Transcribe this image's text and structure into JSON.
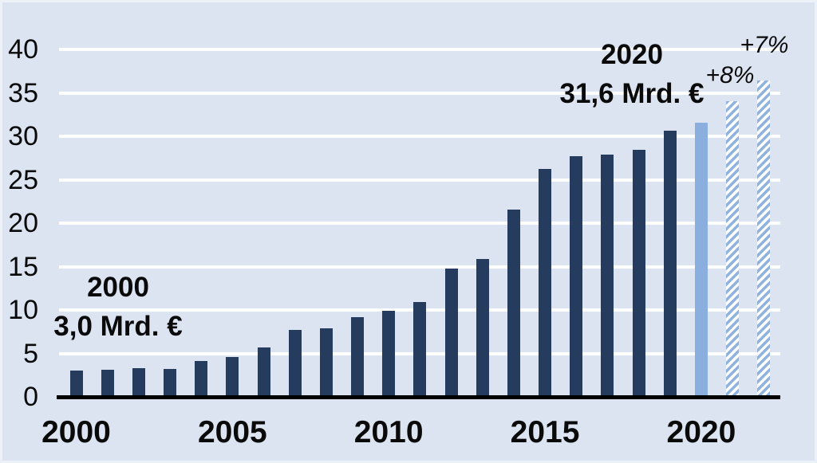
{
  "chart_data": {
    "type": "bar",
    "categories": [
      2000,
      2001,
      2002,
      2003,
      2004,
      2005,
      2006,
      2007,
      2008,
      2009,
      2010,
      2011,
      2012,
      2013,
      2014,
      2015,
      2016,
      2017,
      2018,
      2019,
      2020,
      2021,
      2022
    ],
    "values": [
      3.0,
      3.1,
      3.3,
      3.2,
      4.1,
      4.6,
      5.7,
      7.7,
      7.9,
      9.2,
      9.9,
      10.9,
      14.8,
      15.9,
      21.6,
      26.3,
      27.7,
      27.9,
      28.5,
      30.7,
      31.6,
      34.1,
      36.5
    ],
    "bar_types": [
      "actual",
      "actual",
      "actual",
      "actual",
      "actual",
      "actual",
      "actual",
      "actual",
      "actual",
      "actual",
      "actual",
      "actual",
      "actual",
      "actual",
      "actual",
      "actual",
      "actual",
      "actual",
      "actual",
      "actual",
      "highlight",
      "forecast",
      "forecast"
    ],
    "unit": "Mrd. €",
    "ylim": [
      0,
      40
    ],
    "yticks": [
      "0",
      "5",
      "10",
      "15",
      "20",
      "25",
      "30",
      "35",
      "40"
    ],
    "xticks": [
      "2000",
      "2005",
      "2010",
      "2015",
      "2020"
    ],
    "grid": "horizontal",
    "legend": "none",
    "annotations": {
      "start": {
        "line1": "2000",
        "line2": "3,0 Mrd. €"
      },
      "end": {
        "line1": "2020",
        "line2": "31,6 Mrd. €"
      },
      "forecast_2021": {
        "text": "+8%"
      },
      "forecast_2022": {
        "text": "+7%"
      }
    },
    "colors": {
      "background": "#dce4f1",
      "bar_actual": "#253c5f",
      "bar_highlight": "#8aaedd",
      "bar_forecast_stripe": "#8fb2df",
      "bar_forecast_bg": "#ffffff",
      "gridline": "#ffffff",
      "axis": "#000000",
      "text": "#0a0a0a"
    }
  }
}
